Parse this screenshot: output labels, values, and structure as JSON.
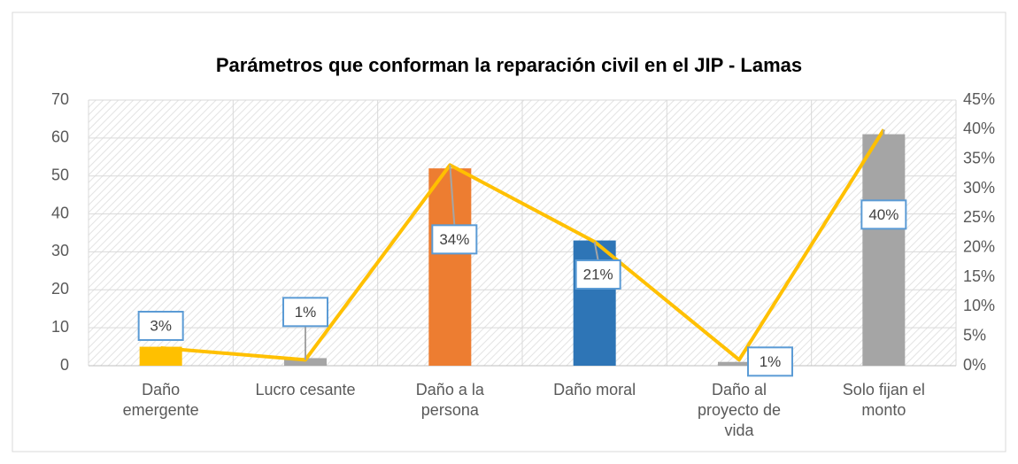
{
  "chart_data": {
    "type": "bar-line",
    "title": "Parámetros que conforman la reparación civil en el JIP - Lamas",
    "categories": [
      [
        "Daño",
        "emergente"
      ],
      [
        "Lucro cesante"
      ],
      [
        "Daño a la",
        "persona"
      ],
      [
        "Daño moral"
      ],
      [
        "Daño al",
        "proyecto de",
        "vida"
      ],
      [
        "Solo fijan el",
        "monto"
      ]
    ],
    "series": [
      {
        "type": "bar",
        "colors": [
          "#ffc000",
          "#a5a5a5",
          "#ed7d31",
          "#2e75b6",
          "#a5a5a5",
          "#a5a5a5"
        ],
        "values": [
          5,
          2,
          52,
          33,
          1,
          61
        ]
      },
      {
        "type": "line",
        "axis": "y2",
        "color": "#ffc000",
        "values": [
          3,
          1,
          34,
          21,
          1,
          40
        ],
        "value_labels": [
          "3%",
          "1%",
          "34%",
          "21%",
          "1%",
          "40%"
        ]
      }
    ],
    "ylim": [
      0,
      70
    ],
    "yticks": [
      0,
      10,
      20,
      30,
      40,
      50,
      60,
      70
    ],
    "y2lim": [
      0,
      45
    ],
    "y2ticks": [
      {
        "value": 0,
        "label": "0%"
      },
      {
        "value": 5,
        "label": "5%"
      },
      {
        "value": 10,
        "label": "10%"
      },
      {
        "value": 15,
        "label": "15%"
      },
      {
        "value": 20,
        "label": "20%"
      },
      {
        "value": 25,
        "label": "25%"
      },
      {
        "value": 30,
        "label": "30%"
      },
      {
        "value": 35,
        "label": "35%"
      },
      {
        "value": 40,
        "label": "40%"
      },
      {
        "value": 45,
        "label": "45%"
      }
    ],
    "grid": true
  }
}
